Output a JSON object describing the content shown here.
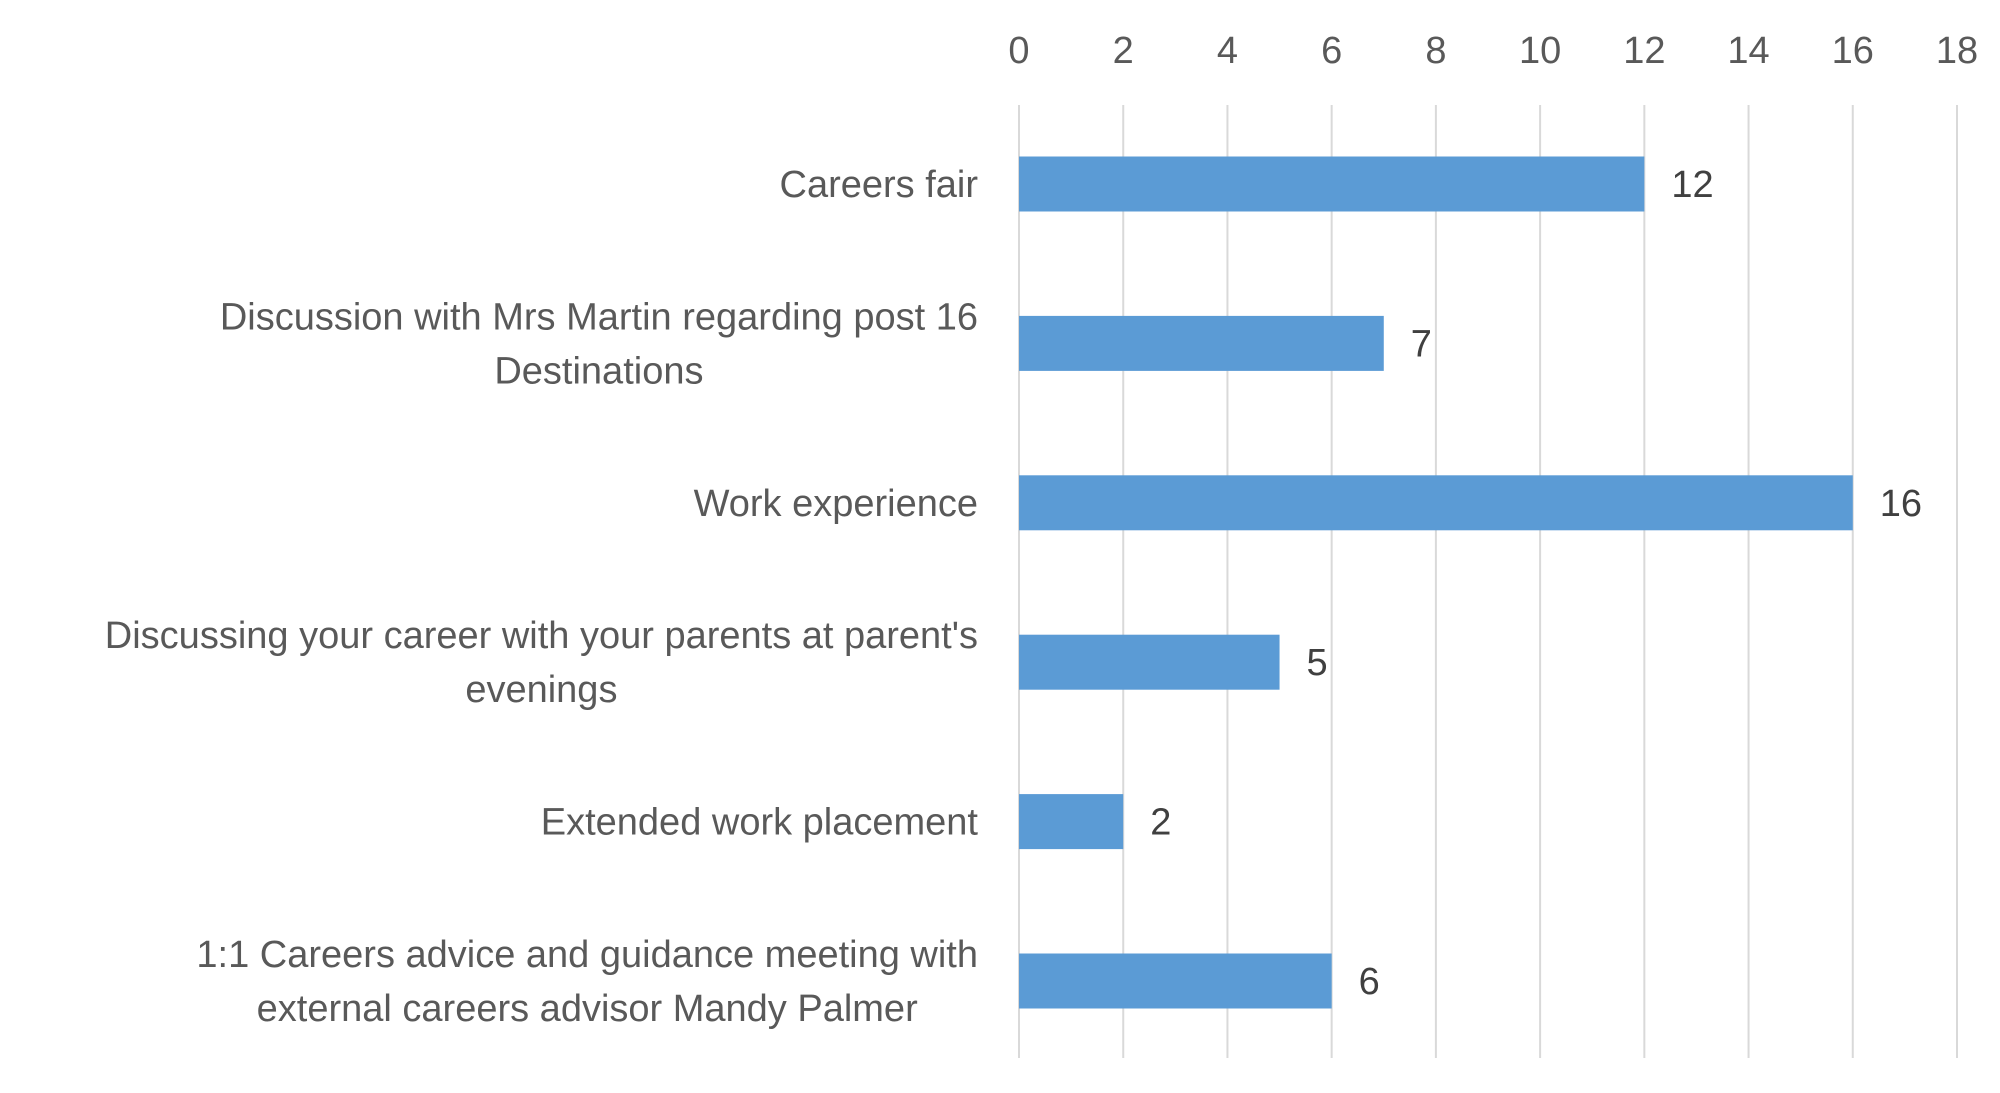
{
  "chart_data": {
    "type": "bar",
    "orientation": "horizontal",
    "categories": [
      [
        "Careers fair"
      ],
      [
        "Discussion with Mrs Martin regarding post 16",
        "Destinations"
      ],
      [
        "Work experience"
      ],
      [
        "Discussing your career with your parents at parent's",
        "evenings"
      ],
      [
        "Extended work placement"
      ],
      [
        "1:1 Careers advice and guidance meeting with",
        "external careers advisor Mandy Palmer"
      ]
    ],
    "values": [
      12,
      7,
      16,
      5,
      2,
      6
    ],
    "xlim": [
      0,
      18
    ],
    "ticks": [
      "0",
      "2",
      "4",
      "6",
      "8",
      "10",
      "12",
      "14",
      "16",
      "18"
    ],
    "axis_position": "top",
    "grid": true,
    "data_labels": true,
    "title": "",
    "xlabel": "",
    "ylabel": ""
  },
  "colors": {
    "bar": "#5b9bd5",
    "grid": "#d9d9d9",
    "text": "#595959",
    "data_label": "#404040"
  }
}
